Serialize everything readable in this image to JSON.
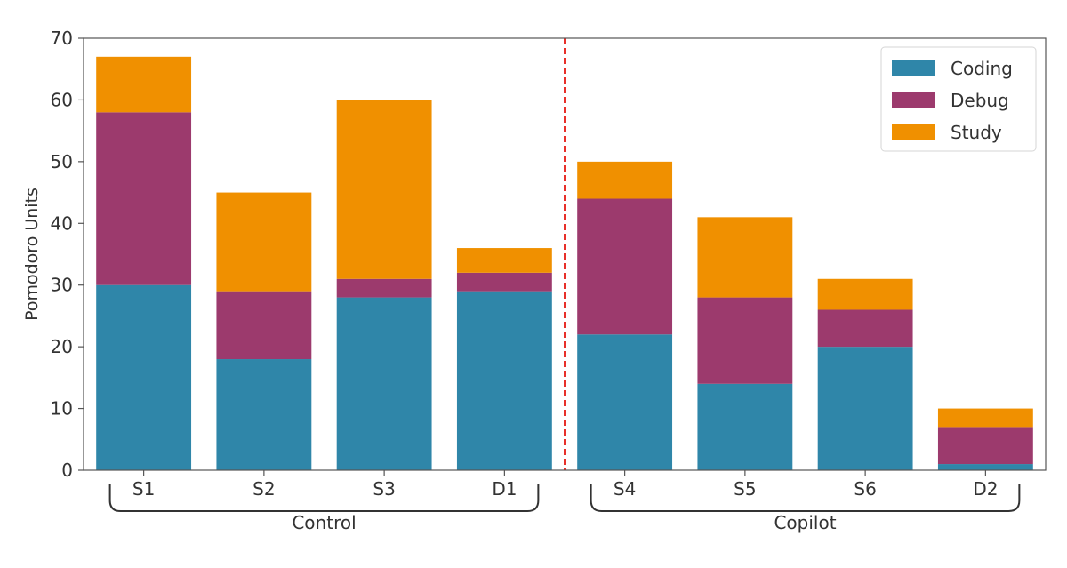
{
  "chart_data": {
    "type": "bar",
    "stacked": true,
    "categories": [
      "S1",
      "S2",
      "S3",
      "D1",
      "S4",
      "S5",
      "S6",
      "D2"
    ],
    "series": [
      {
        "name": "Coding",
        "values": [
          30,
          18,
          28,
          29,
          22,
          14,
          20,
          1
        ],
        "color": "#2f86a9"
      },
      {
        "name": "Debug",
        "values": [
          28,
          11,
          3,
          3,
          22,
          14,
          6,
          6
        ],
        "color": "#9c3a6d"
      },
      {
        "name": "Study",
        "values": [
          9,
          16,
          29,
          4,
          6,
          13,
          5,
          3
        ],
        "color": "#f09000"
      }
    ],
    "groups": [
      {
        "label": "Control",
        "categories": [
          "S1",
          "S2",
          "S3",
          "D1"
        ]
      },
      {
        "label": "Copilot",
        "categories": [
          "S4",
          "S5",
          "S6",
          "D2"
        ]
      }
    ],
    "title": "",
    "xlabel": "",
    "ylabel": "Pomodoro Units",
    "ylim": [
      0,
      70
    ],
    "yticks": [
      0,
      10,
      20,
      30,
      40,
      50,
      60,
      70
    ],
    "legend": {
      "placement": "top-right"
    },
    "grid": false,
    "divider": {
      "after_category": "D1",
      "style": "dashed",
      "color": "#e8302a"
    }
  }
}
